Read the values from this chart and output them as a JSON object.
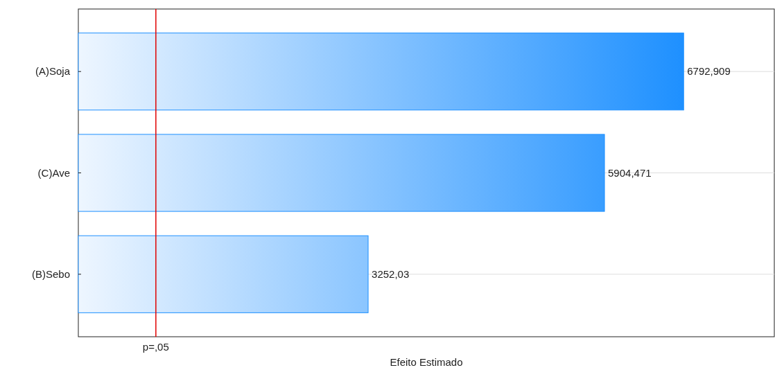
{
  "chart_data": {
    "type": "bar",
    "orientation": "horizontal",
    "xlabel": "Efeito Estimado",
    "categories": [
      "(A)Soja",
      "(C)Ave",
      "(B)Sebo"
    ],
    "values": [
      6792.909,
      5904.471,
      3252.03
    ],
    "value_labels": [
      "6792,909",
      "5904,471",
      "3252,03"
    ],
    "color": "#1e90ff",
    "xlim": [
      0,
      7810
    ],
    "grid": "y",
    "tick_labels": "y",
    "ref_lines": [
      {
        "axis": "x",
        "value": 870,
        "label": "p=,05",
        "color": "#e00000"
      }
    ]
  }
}
